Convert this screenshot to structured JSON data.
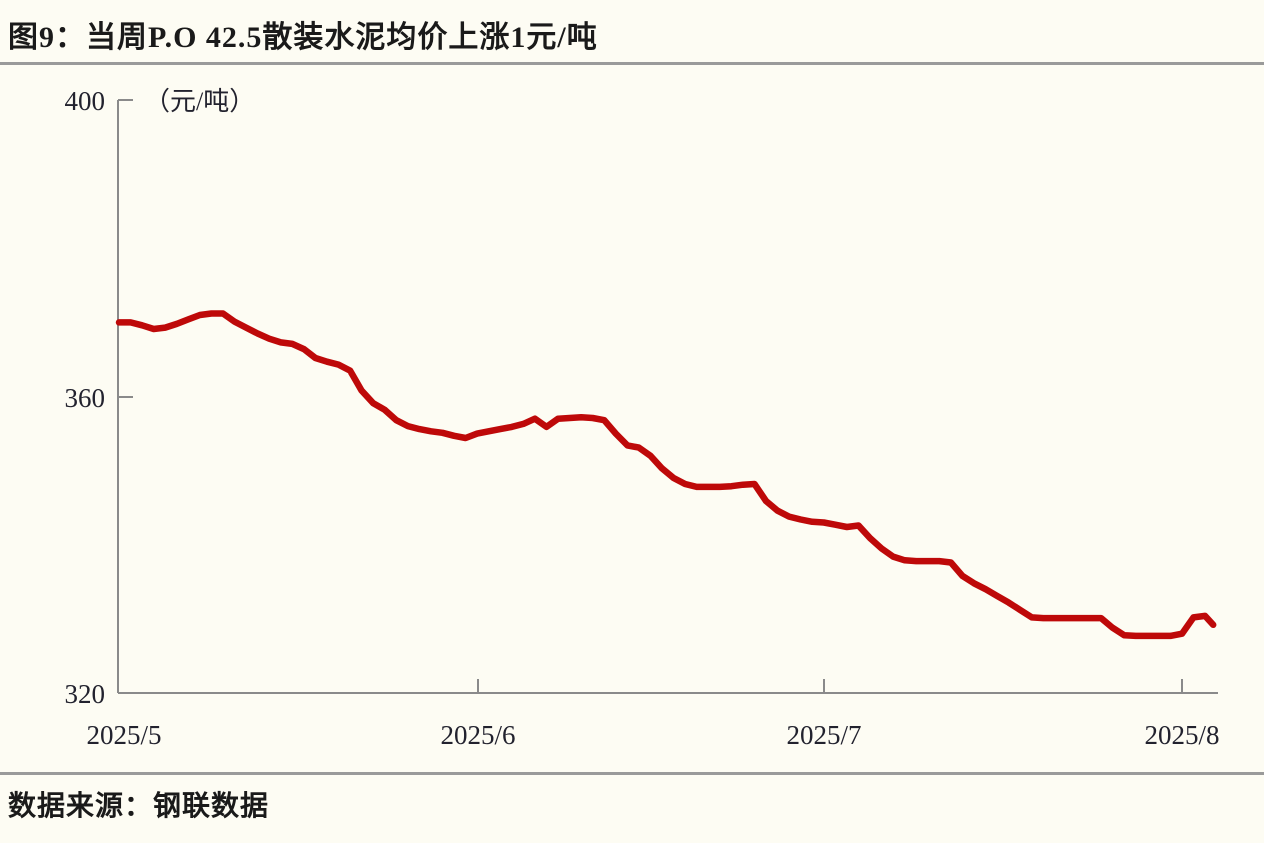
{
  "figure": {
    "title": "图9：当周P.O 42.5散装水泥均价上涨1元/吨",
    "source": "数据来源：钢联数据"
  },
  "chart_data": {
    "type": "line",
    "title": "当周P.O 42.5散装水泥均价上涨1元/吨",
    "unit_label": "（元/吨）",
    "ylabel": "元/吨",
    "ylim": [
      320,
      400
    ],
    "y_ticks": [
      400,
      360,
      320
    ],
    "y_tick_labels": [
      "400",
      "360",
      "320"
    ],
    "x_tick_labels": [
      "2025/5",
      "2025/6",
      "2025/7",
      "2025/8"
    ],
    "x_tick_days": [
      0,
      31,
      61,
      92
    ],
    "x_start_date": "2025/5/1",
    "grid": false,
    "legend": "none",
    "line_color": "#be0909",
    "axis_color": "#8a8a8a",
    "series": [
      {
        "name": "P.O 42.5散装水泥均价",
        "points_format": "[days_since_2025-05-01, price_yuan_per_ton]",
        "points": [
          [
            0,
            370.0
          ],
          [
            1,
            370.0
          ],
          [
            2,
            369.6
          ],
          [
            3,
            369.1
          ],
          [
            4,
            369.3
          ],
          [
            5,
            369.8
          ],
          [
            6,
            370.4
          ],
          [
            7,
            371.0
          ],
          [
            8,
            371.2
          ],
          [
            9,
            371.2
          ],
          [
            10,
            370.1
          ],
          [
            11,
            369.3
          ],
          [
            12,
            368.5
          ],
          [
            13,
            367.8
          ],
          [
            14,
            367.3
          ],
          [
            15,
            367.1
          ],
          [
            16,
            366.4
          ],
          [
            17,
            365.2
          ],
          [
            18,
            364.7
          ],
          [
            19,
            364.3
          ],
          [
            20,
            363.5
          ],
          [
            21,
            360.8
          ],
          [
            22,
            359.1
          ],
          [
            23,
            358.2
          ],
          [
            24,
            356.8
          ],
          [
            25,
            356.0
          ],
          [
            26,
            355.6
          ],
          [
            27,
            355.3
          ],
          [
            28,
            355.1
          ],
          [
            29,
            354.7
          ],
          [
            30,
            354.4
          ],
          [
            31,
            355.0
          ],
          [
            32,
            355.3
          ],
          [
            33,
            355.6
          ],
          [
            34,
            355.9
          ],
          [
            35,
            356.3
          ],
          [
            36,
            357.0
          ],
          [
            37,
            355.9
          ],
          [
            38,
            357.0
          ],
          [
            39,
            357.1
          ],
          [
            40,
            357.2
          ],
          [
            41,
            357.1
          ],
          [
            42,
            356.8
          ],
          [
            43,
            355.0
          ],
          [
            44,
            353.4
          ],
          [
            45,
            353.1
          ],
          [
            46,
            352.0
          ],
          [
            47,
            350.3
          ],
          [
            48,
            349.0
          ],
          [
            49,
            348.2
          ],
          [
            50,
            347.8
          ],
          [
            51,
            347.8
          ],
          [
            52,
            347.8
          ],
          [
            53,
            347.9
          ],
          [
            54,
            348.1
          ],
          [
            55,
            348.2
          ],
          [
            56,
            345.9
          ],
          [
            57,
            344.6
          ],
          [
            58,
            343.8
          ],
          [
            59,
            343.4
          ],
          [
            60,
            343.1
          ],
          [
            61,
            343.0
          ],
          [
            62,
            342.7
          ],
          [
            63,
            342.4
          ],
          [
            64,
            342.6
          ],
          [
            65,
            340.9
          ],
          [
            66,
            339.5
          ],
          [
            67,
            338.4
          ],
          [
            68,
            337.9
          ],
          [
            69,
            337.8
          ],
          [
            70,
            337.8
          ],
          [
            71,
            337.8
          ],
          [
            72,
            337.6
          ],
          [
            73,
            335.8
          ],
          [
            74,
            334.8
          ],
          [
            75,
            334.0
          ],
          [
            76,
            333.1
          ],
          [
            77,
            332.2
          ],
          [
            78,
            331.2
          ],
          [
            79,
            330.2
          ],
          [
            80,
            330.1
          ],
          [
            81,
            330.1
          ],
          [
            82,
            330.1
          ],
          [
            83,
            330.1
          ],
          [
            84,
            330.1
          ],
          [
            85,
            330.1
          ],
          [
            86,
            328.8
          ],
          [
            87,
            327.8
          ],
          [
            88,
            327.7
          ],
          [
            89,
            327.7
          ],
          [
            90,
            327.7
          ],
          [
            91,
            327.7
          ],
          [
            92,
            328.0
          ],
          [
            93,
            330.2
          ],
          [
            94,
            330.4
          ],
          [
            94.7,
            329.2
          ]
        ]
      }
    ]
  }
}
